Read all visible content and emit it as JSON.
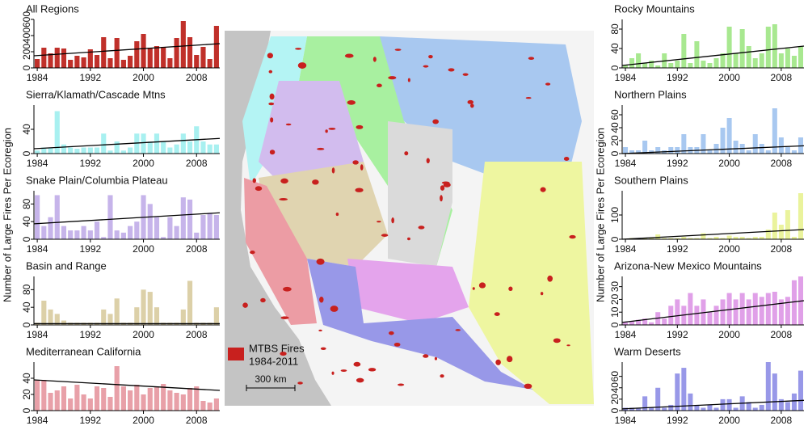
{
  "axis_label": "Number of Large Fires Per Ecoregion",
  "map": {
    "legend_title": "MTBS Fires",
    "legend_period": "1984-2011",
    "scale_label": "300 km"
  },
  "chart_data": [
    {
      "type": "bar",
      "title": "All Regions",
      "color": "#c0302a",
      "xlim": [
        1983.5,
        2011.5
      ],
      "xticks": [
        1984,
        1992,
        2000,
        2008
      ],
      "ylim": [
        0,
        600
      ],
      "yticks": [
        0,
        200,
        400,
        600
      ],
      "x": [
        1984,
        1985,
        1986,
        1987,
        1988,
        1989,
        1990,
        1991,
        1992,
        1993,
        1994,
        1995,
        1996,
        1997,
        1998,
        1999,
        2000,
        2001,
        2002,
        2003,
        2004,
        2005,
        2006,
        2007,
        2008,
        2009,
        2010,
        2011
      ],
      "values": [
        110,
        250,
        180,
        250,
        240,
        100,
        150,
        130,
        230,
        160,
        380,
        120,
        370,
        100,
        150,
        330,
        420,
        250,
        270,
        260,
        120,
        370,
        580,
        380,
        160,
        260,
        110,
        520
      ],
      "trend": [
        150,
        300
      ]
    },
    {
      "type": "bar",
      "title": "Sierra/Klamath/Cascade Mtns",
      "color": "#a8f0f0",
      "xlim": [
        1983.5,
        2011.5
      ],
      "xticks": [
        1984,
        1992,
        2000,
        2008
      ],
      "ylim": [
        0,
        80
      ],
      "yticks": [
        0,
        40
      ],
      "x": [
        1984,
        1985,
        1986,
        1987,
        1988,
        1989,
        1990,
        1991,
        1992,
        1993,
        1994,
        1995,
        1996,
        1997,
        1998,
        1999,
        2000,
        2001,
        2002,
        2003,
        2004,
        2005,
        2006,
        2007,
        2008,
        2009,
        2010,
        2011
      ],
      "values": [
        5,
        10,
        10,
        70,
        15,
        10,
        8,
        10,
        10,
        10,
        33,
        5,
        20,
        5,
        10,
        33,
        33,
        20,
        33,
        20,
        10,
        15,
        33,
        20,
        45,
        20,
        15,
        15
      ],
      "trend": [
        8,
        25
      ]
    },
    {
      "type": "bar",
      "title": "Snake Plain/Columbia Plateau",
      "color": "#c6b4ea",
      "xlim": [
        1983.5,
        2011.5
      ],
      "xticks": [
        1984,
        1992,
        2000,
        2008
      ],
      "ylim": [
        0,
        110
      ],
      "yticks": [
        0,
        40,
        80
      ],
      "x": [
        1984,
        1985,
        1986,
        1987,
        1988,
        1989,
        1990,
        1991,
        1992,
        1993,
        1994,
        1995,
        1996,
        1997,
        1998,
        1999,
        2000,
        2001,
        2002,
        2003,
        2004,
        2005,
        2006,
        2007,
        2008,
        2009,
        2010,
        2011
      ],
      "values": [
        100,
        30,
        50,
        100,
        30,
        20,
        20,
        30,
        20,
        40,
        5,
        100,
        20,
        15,
        30,
        40,
        100,
        80,
        50,
        5,
        50,
        30,
        95,
        90,
        15,
        55,
        60,
        55
      ],
      "trend": [
        35,
        60
      ]
    },
    {
      "type": "bar",
      "title": "Basin and Range",
      "color": "#dcd0a8",
      "xlim": [
        1983.5,
        2011.5
      ],
      "xticks": [
        1984,
        1992,
        2000,
        2008
      ],
      "ylim": [
        0,
        110
      ],
      "yticks": [
        0,
        40,
        80
      ],
      "x": [
        1984,
        1985,
        1986,
        1987,
        1988,
        1989,
        1990,
        1991,
        1992,
        1993,
        1994,
        1995,
        1996,
        1997,
        1998,
        1999,
        2000,
        2001,
        2002,
        2003,
        2004,
        2005,
        2006,
        2007,
        2008,
        2009,
        2010,
        2011
      ],
      "values": [
        5,
        55,
        35,
        25,
        10,
        5,
        5,
        5,
        5,
        5,
        35,
        25,
        60,
        5,
        5,
        40,
        80,
        75,
        40,
        5,
        5,
        5,
        35,
        100,
        5,
        5,
        5,
        40
      ],
      "trend": [
        3,
        3
      ]
    },
    {
      "type": "bar",
      "title": "Mediterranean California",
      "color": "#e8a0a8",
      "xlim": [
        1983.5,
        2011.5
      ],
      "xticks": [
        1984,
        1992,
        2000,
        2008
      ],
      "ylim": [
        0,
        60
      ],
      "yticks": [
        0,
        20,
        40
      ],
      "x": [
        1984,
        1985,
        1986,
        1987,
        1988,
        1989,
        1990,
        1991,
        1992,
        1993,
        1994,
        1995,
        1996,
        1997,
        1998,
        1999,
        2000,
        2001,
        2002,
        2003,
        2004,
        2005,
        2006,
        2007,
        2008,
        2009,
        2010,
        2011
      ],
      "values": [
        38,
        38,
        22,
        25,
        30,
        15,
        32,
        20,
        15,
        30,
        28,
        17,
        55,
        30,
        25,
        32,
        20,
        28,
        30,
        33,
        25,
        22,
        20,
        28,
        30,
        12,
        10,
        15
      ],
      "trend": [
        38,
        25
      ]
    },
    {
      "type": "bar",
      "title": "Rocky Mountains",
      "color": "#a8e890",
      "xlim": [
        1983.5,
        2011.5
      ],
      "xticks": [
        1984,
        1992,
        2000,
        2008
      ],
      "ylim": [
        0,
        100
      ],
      "yticks": [
        0,
        40,
        80
      ],
      "x": [
        1984,
        1985,
        1986,
        1987,
        1988,
        1989,
        1990,
        1991,
        1992,
        1993,
        1994,
        1995,
        1996,
        1997,
        1998,
        1999,
        2000,
        2001,
        2002,
        2003,
        2004,
        2005,
        2006,
        2007,
        2008,
        2009,
        2010,
        2011
      ],
      "values": [
        5,
        20,
        30,
        10,
        15,
        5,
        30,
        10,
        15,
        70,
        10,
        55,
        15,
        10,
        20,
        30,
        85,
        30,
        80,
        45,
        20,
        30,
        85,
        90,
        30,
        40,
        25,
        45
      ],
      "trend": [
        5,
        45
      ]
    },
    {
      "type": "bar",
      "title": "Northern Plains",
      "color": "#a8c8f0",
      "xlim": [
        1983.5,
        2011.5
      ],
      "xticks": [
        1984,
        1992,
        2000,
        2008
      ],
      "ylim": [
        0,
        75
      ],
      "yticks": [
        0,
        20,
        40,
        60
      ],
      "x": [
        1984,
        1985,
        1986,
        1987,
        1988,
        1989,
        1990,
        1991,
        1992,
        1993,
        1994,
        1995,
        1996,
        1997,
        1998,
        1999,
        2000,
        2001,
        2002,
        2003,
        2004,
        2005,
        2006,
        2007,
        2008,
        2009,
        2010,
        2011
      ],
      "values": [
        10,
        5,
        5,
        20,
        5,
        10,
        5,
        10,
        10,
        30,
        10,
        10,
        30,
        5,
        15,
        40,
        55,
        20,
        15,
        5,
        30,
        15,
        5,
        70,
        25,
        10,
        5,
        25
      ],
      "trend": [
        0,
        12
      ]
    },
    {
      "type": "bar",
      "title": "Southern Plains",
      "color": "#eaf39c",
      "xlim": [
        1983.5,
        2011.5
      ],
      "xticks": [
        1984,
        1992,
        2000,
        2008
      ],
      "ylim": [
        0,
        200
      ],
      "yticks": [
        0,
        100
      ],
      "x": [
        1984,
        1985,
        1986,
        1987,
        1988,
        1989,
        1990,
        1991,
        1992,
        1993,
        1994,
        1995,
        1996,
        1997,
        1998,
        1999,
        2000,
        2001,
        2002,
        2003,
        2004,
        2005,
        2006,
        2007,
        2008,
        2009,
        2010,
        2011
      ],
      "values": [
        2,
        5,
        2,
        5,
        5,
        20,
        5,
        5,
        5,
        10,
        5,
        5,
        25,
        5,
        10,
        5,
        15,
        10,
        10,
        5,
        10,
        10,
        40,
        110,
        60,
        120,
        10,
        190
      ],
      "trend": [
        0,
        40
      ]
    },
    {
      "type": "bar",
      "title": "Arizona-New Mexico Mountains",
      "color": "#e0a0e8",
      "xlim": [
        1983.5,
        2011.5
      ],
      "xticks": [
        1984,
        1992,
        2000,
        2008
      ],
      "ylim": [
        0,
        38
      ],
      "yticks": [
        0,
        10,
        20,
        30
      ],
      "x": [
        1984,
        1985,
        1986,
        1987,
        1988,
        1989,
        1990,
        1991,
        1992,
        1993,
        1994,
        1995,
        1996,
        1997,
        1998,
        1999,
        2000,
        2001,
        2002,
        2003,
        2004,
        2005,
        2006,
        2007,
        2008,
        2009,
        2010,
        2011
      ],
      "values": [
        2,
        3,
        4,
        5,
        2,
        10,
        5,
        15,
        20,
        15,
        25,
        15,
        20,
        10,
        15,
        20,
        25,
        20,
        25,
        20,
        25,
        22,
        25,
        26,
        20,
        22,
        35,
        38
      ],
      "trend": [
        2,
        19
      ]
    },
    {
      "type": "bar",
      "title": "Warm Deserts",
      "color": "#9898e8",
      "xlim": [
        1983.5,
        2011.5
      ],
      "xticks": [
        1984,
        1992,
        2000,
        2008
      ],
      "ylim": [
        0,
        85
      ],
      "yticks": [
        0,
        20,
        40,
        60
      ],
      "x": [
        1984,
        1985,
        1986,
        1987,
        1988,
        1989,
        1990,
        1991,
        1992,
        1993,
        1994,
        1995,
        1996,
        1997,
        1998,
        1999,
        2000,
        2001,
        2002,
        2003,
        2004,
        2005,
        2006,
        2007,
        2008,
        2009,
        2010,
        2011
      ],
      "values": [
        5,
        5,
        5,
        25,
        5,
        40,
        5,
        10,
        65,
        75,
        30,
        10,
        5,
        10,
        5,
        20,
        20,
        5,
        25,
        15,
        5,
        10,
        85,
        65,
        20,
        15,
        30,
        70
      ],
      "trend": [
        3,
        18
      ]
    }
  ]
}
